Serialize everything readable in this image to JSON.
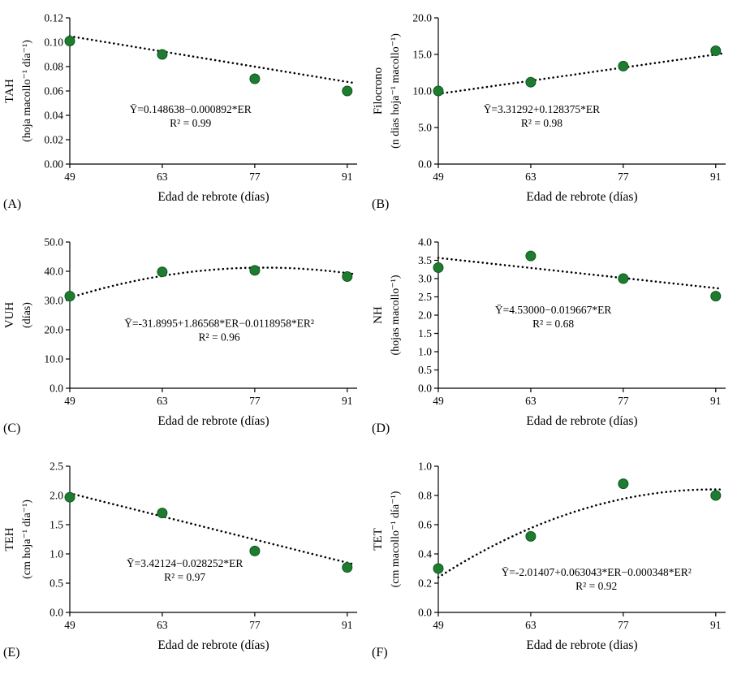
{
  "colors": {
    "point": "#1e7b30",
    "point_border": "#0c5a1e",
    "trend": "#000000",
    "axis": "#000000",
    "text": "#000000",
    "background": "#ffffff"
  },
  "chart_data": [
    {
      "panel": "(A)",
      "type": "scatter",
      "x": [
        49,
        63,
        77,
        91
      ],
      "y": [
        0.101,
        0.09,
        0.07,
        0.06
      ],
      "xticks": [
        49,
        63,
        77,
        91
      ],
      "xlim": [
        49,
        92.5
      ],
      "ylim": [
        0,
        0.12
      ],
      "ystep": 0.02,
      "ydec": 2,
      "xlabel": "Edad de rebrote (días)",
      "ylabel1": "TAH",
      "ylabel2": "(hoja macollo⁻¹ día⁻¹)",
      "equation": "Ȳ=0.148638−0.000892*ER",
      "r2": "R² = 0.99",
      "trend": {
        "kind": "linear",
        "c0": 0.148638,
        "c1": -0.000892,
        "c2": 0
      },
      "trend_range": [
        49,
        92
      ],
      "eq_fx": 0.42,
      "eq_fy": 0.65
    },
    {
      "panel": "(B)",
      "type": "scatter",
      "x": [
        49,
        63,
        77,
        91
      ],
      "y": [
        10.0,
        11.2,
        13.4,
        15.5
      ],
      "xticks": [
        49,
        63,
        77,
        91
      ],
      "xlim": [
        49,
        92.5
      ],
      "ylim": [
        0,
        20
      ],
      "ystep": 5,
      "ydec": 1,
      "xlabel": "Edad de rebrote (días)",
      "ylabel1": "Filocrono",
      "ylabel2": "(n dias hoja⁻¹ macollo⁻¹)",
      "equation": "Ȳ=3.31292+0.128375*ER",
      "r2": "R² = 0.98",
      "trend": {
        "kind": "linear",
        "c0": 3.31292,
        "c1": 0.128375,
        "c2": 0
      },
      "trend_range": [
        49,
        92
      ],
      "eq_fx": 0.36,
      "eq_fy": 0.65
    },
    {
      "panel": "(C)",
      "type": "scatter",
      "x": [
        49,
        63,
        77,
        91
      ],
      "y": [
        31.5,
        39.8,
        40.3,
        38.2
      ],
      "xticks": [
        49,
        63,
        77,
        91
      ],
      "xlim": [
        49,
        92.5
      ],
      "ylim": [
        0,
        50
      ],
      "ystep": 10,
      "ydec": 1,
      "xlabel": "Edad de rebrote (días)",
      "ylabel1": "VUH",
      "ylabel2": "(días)",
      "equation": "Ȳ=-31.8995+1.86568*ER−0.0118958*ER²",
      "r2": "R² = 0.96",
      "trend": {
        "kind": "quadratic",
        "c0": -31.8995,
        "c1": 1.86568,
        "c2": -0.0118958
      },
      "trend_range": [
        49,
        92
      ],
      "eq_fx": 0.52,
      "eq_fy": 0.58
    },
    {
      "panel": "(D)",
      "type": "scatter",
      "x": [
        49,
        63,
        77,
        91
      ],
      "y": [
        3.3,
        3.62,
        3.0,
        2.52
      ],
      "xticks": [
        49,
        63,
        77,
        91
      ],
      "xlim": [
        49,
        92.5
      ],
      "ylim": [
        0,
        4
      ],
      "ystep": 0.5,
      "ydec": 1,
      "xlabel": "Edad de rebrote (días)",
      "ylabel1": "NH",
      "ylabel2": "(hojas macollo⁻¹)",
      "equation": "Ȳ=4.53000−0.019667*ER",
      "r2": "R² = 0.68",
      "trend": {
        "kind": "linear",
        "c0": 4.53,
        "c1": -0.019667,
        "c2": 0
      },
      "trend_range": [
        49,
        92
      ],
      "eq_fx": 0.4,
      "eq_fy": 0.49
    },
    {
      "panel": "(E)",
      "type": "scatter",
      "x": [
        49,
        63,
        77,
        91
      ],
      "y": [
        1.97,
        1.7,
        1.05,
        0.77
      ],
      "xticks": [
        49,
        63,
        77,
        91
      ],
      "xlim": [
        49,
        92.5
      ],
      "ylim": [
        0,
        2.5
      ],
      "ystep": 0.5,
      "ydec": 1,
      "xlabel": "Edad de rebrote (días)",
      "ylabel1": "TEH",
      "ylabel2": "(cm hoja⁻¹ día⁻¹)",
      "equation": "Ȳ=3.42124−0.028252*ER",
      "r2": "R² = 0.97",
      "trend": {
        "kind": "linear",
        "c0": 3.42124,
        "c1": -0.028252,
        "c2": 0
      },
      "trend_range": [
        49,
        92
      ],
      "eq_fx": 0.4,
      "eq_fy": 0.69
    },
    {
      "panel": "(F)",
      "type": "scatter",
      "x": [
        49,
        63,
        77,
        91
      ],
      "y": [
        0.3,
        0.52,
        0.88,
        0.8
      ],
      "xticks": [
        49,
        63,
        77,
        91
      ],
      "xlim": [
        49,
        92.5
      ],
      "ylim": [
        0,
        1.0
      ],
      "ystep": 0.2,
      "ydec": 1,
      "xlabel": "Edad de rebrote (dias)",
      "ylabel1": "TET",
      "ylabel2": "(cm macollo⁻¹ día⁻¹)",
      "equation": "Ȳ=-2.01407+0.063043*ER−0.000348*ER²",
      "r2": "R² = 0.92",
      "trend": {
        "kind": "quadratic",
        "c0": -2.01407,
        "c1": 0.063043,
        "c2": -0.000348
      },
      "trend_range": [
        49,
        92
      ],
      "eq_fx": 0.55,
      "eq_fy": 0.75
    }
  ]
}
